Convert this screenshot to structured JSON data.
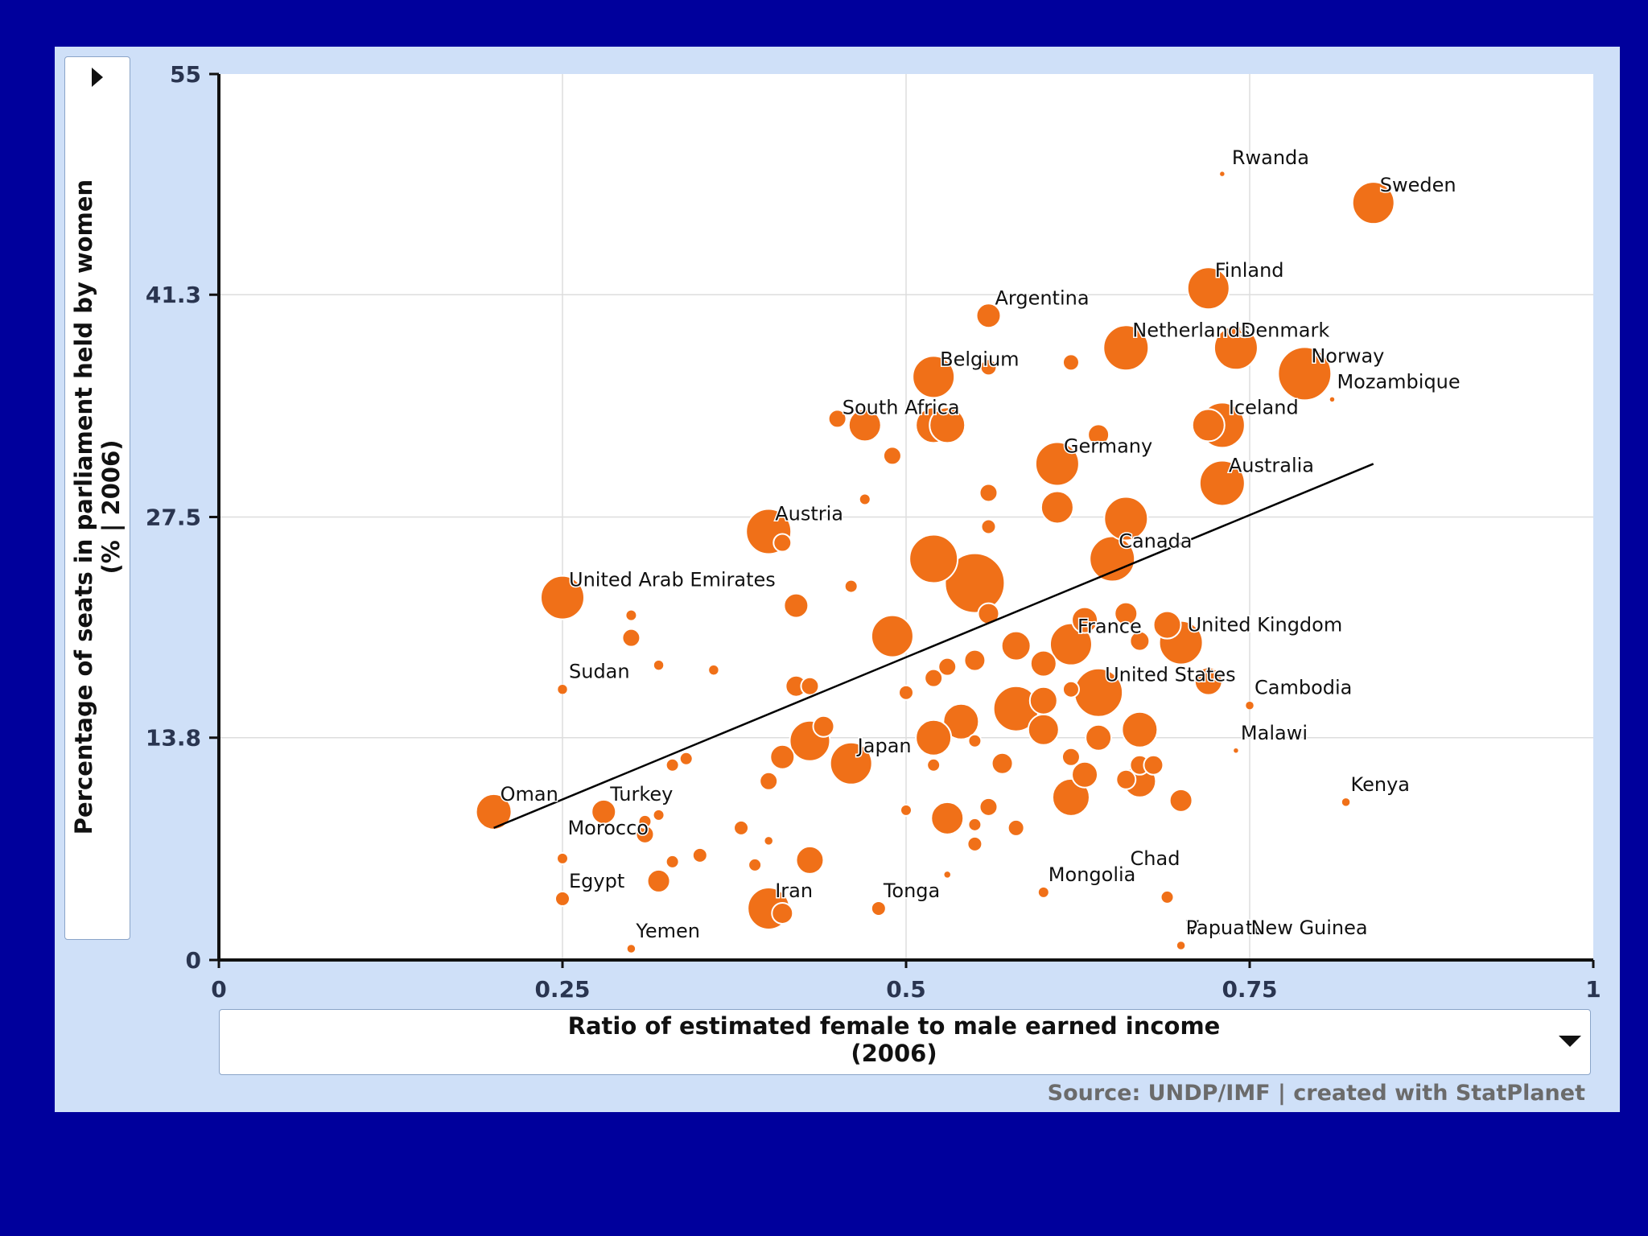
{
  "chart_data": {
    "type": "scatter",
    "xlabel": "Ratio of estimated female to male earned income\n(2006)",
    "ylabel": "Percentage of seats in parliament held by women\n(% | 2006)",
    "xlim": [
      0,
      1
    ],
    "ylim": [
      0,
      55
    ],
    "x_ticks": [
      0,
      0.25,
      0.5,
      0.75,
      1
    ],
    "x_tick_labels": [
      "0",
      "0.25",
      "0.5",
      "0.75",
      "1"
    ],
    "y_ticks": [
      0,
      13.8,
      27.5,
      41.3,
      55
    ],
    "y_tick_labels": [
      "0",
      "13.8",
      "27.5",
      "41.3",
      "55"
    ],
    "grid": true,
    "source": "Source: UNDP/IMF | created with StatPlanet",
    "colors": {
      "bubble": "#f07018",
      "bubble_stroke": "#ffffff",
      "trend": "#000000"
    },
    "trend_line": {
      "x": [
        0.2,
        0.84
      ],
      "y": [
        8.2,
        30.8
      ]
    },
    "points": [
      {
        "name": "Rwanda",
        "x": 0.73,
        "y": 48.8,
        "size": 3
      },
      {
        "name": "Sweden",
        "x": 0.84,
        "y": 47.0,
        "size": 26
      },
      {
        "name": "Finland",
        "x": 0.72,
        "y": 41.7,
        "size": 26
      },
      {
        "name": "Argentina",
        "x": 0.56,
        "y": 40.0,
        "size": 15
      },
      {
        "name": "Netherlands",
        "x": 0.66,
        "y": 38.0,
        "size": 28
      },
      {
        "name": "Denmark",
        "x": 0.74,
        "y": 38.0,
        "size": 27
      },
      {
        "name": "Norway",
        "x": 0.79,
        "y": 36.4,
        "size": 33
      },
      {
        "name": "Mozambique",
        "x": 0.81,
        "y": 34.8,
        "size": 3
      },
      {
        "name": "Belgium",
        "x": 0.52,
        "y": 36.2,
        "size": 26
      },
      {
        "name": "South Africa",
        "x": 0.47,
        "y": 33.2,
        "size": 20
      },
      {
        "name": "Iceland",
        "x": 0.73,
        "y": 33.2,
        "size": 28
      },
      {
        "name": "Germany",
        "x": 0.61,
        "y": 30.8,
        "size": 27
      },
      {
        "name": "Australia",
        "x": 0.73,
        "y": 29.6,
        "size": 28
      },
      {
        "name": "Austria",
        "x": 0.4,
        "y": 26.6,
        "size": 28
      },
      {
        "name": "Canada",
        "x": 0.65,
        "y": 24.9,
        "size": 28
      },
      {
        "name": "United Arab Emirates",
        "x": 0.25,
        "y": 22.5,
        "size": 27
      },
      {
        "name": "France",
        "x": 0.62,
        "y": 19.6,
        "size": 26
      },
      {
        "name": "United Kingdom",
        "x": 0.7,
        "y": 19.7,
        "size": 27
      },
      {
        "name": "Sudan",
        "x": 0.25,
        "y": 16.8,
        "size": 6
      },
      {
        "name": "United States",
        "x": 0.64,
        "y": 16.6,
        "size": 30
      },
      {
        "name": "Cambodia",
        "x": 0.75,
        "y": 15.8,
        "size": 5
      },
      {
        "name": "Malawi",
        "x": 0.74,
        "y": 13.0,
        "size": 3
      },
      {
        "name": "Japan",
        "x": 0.46,
        "y": 12.2,
        "size": 26
      },
      {
        "name": "Kenya",
        "x": 0.82,
        "y": 9.8,
        "size": 5
      },
      {
        "name": "Oman",
        "x": 0.2,
        "y": 9.2,
        "size": 22
      },
      {
        "name": "Turkey",
        "x": 0.28,
        "y": 9.2,
        "size": 15
      },
      {
        "name": "Morocco",
        "x": 0.31,
        "y": 7.8,
        "size": 11
      },
      {
        "name": "Egypt",
        "x": 0.25,
        "y": 3.8,
        "size": 9
      },
      {
        "name": "Iran",
        "x": 0.4,
        "y": 3.2,
        "size": 26
      },
      {
        "name": "Tonga",
        "x": 0.48,
        "y": 3.2,
        "size": 9
      },
      {
        "name": "Mongolia",
        "x": 0.6,
        "y": 4.2,
        "size": 7
      },
      {
        "name": "Chad",
        "x": 0.69,
        "y": 3.9,
        "size": 8
      },
      {
        "name": "Vanuatu",
        "x": 0.7,
        "y": 0.9,
        "size": 5
      },
      {
        "name": "Yemen",
        "x": 0.3,
        "y": 0.7,
        "size": 5
      },
      {
        "name": "Papua New Guinea",
        "x": 0.7,
        "y": 0.9,
        "size": 5
      }
    ],
    "unlabeled_points": [
      [
        0.52,
        33.2,
        22
      ],
      [
        0.53,
        33.2,
        22
      ],
      [
        0.45,
        33.6,
        11
      ],
      [
        0.49,
        31.3,
        11
      ],
      [
        0.56,
        36.8,
        10
      ],
      [
        0.62,
        37.1,
        10
      ],
      [
        0.64,
        32.6,
        13
      ],
      [
        0.72,
        33.2,
        20
      ],
      [
        0.56,
        29.0,
        11
      ],
      [
        0.47,
        28.6,
        7
      ],
      [
        0.61,
        28.1,
        20
      ],
      [
        0.66,
        27.4,
        27
      ],
      [
        0.56,
        26.9,
        9
      ],
      [
        0.52,
        24.9,
        30
      ],
      [
        0.55,
        23.4,
        37
      ],
      [
        0.41,
        25.9,
        11
      ],
      [
        0.46,
        23.2,
        8
      ],
      [
        0.42,
        22.0,
        15
      ],
      [
        0.3,
        21.4,
        7
      ],
      [
        0.3,
        20.0,
        11
      ],
      [
        0.32,
        18.3,
        6
      ],
      [
        0.36,
        18.0,
        6
      ],
      [
        0.49,
        20.1,
        26
      ],
      [
        0.56,
        21.5,
        13
      ],
      [
        0.63,
        21.1,
        16
      ],
      [
        0.66,
        21.5,
        14
      ],
      [
        0.69,
        20.8,
        17
      ],
      [
        0.67,
        19.8,
        12
      ],
      [
        0.58,
        19.5,
        18
      ],
      [
        0.6,
        18.4,
        16
      ],
      [
        0.55,
        18.6,
        13
      ],
      [
        0.53,
        18.2,
        11
      ],
      [
        0.52,
        17.5,
        11
      ],
      [
        0.43,
        17.0,
        11
      ],
      [
        0.42,
        17.0,
        13
      ],
      [
        0.5,
        16.6,
        9
      ],
      [
        0.62,
        16.8,
        10
      ],
      [
        0.72,
        17.3,
        17
      ],
      [
        0.58,
        15.6,
        28
      ],
      [
        0.6,
        16.1,
        17
      ],
      [
        0.54,
        14.8,
        22
      ],
      [
        0.44,
        14.5,
        13
      ],
      [
        0.43,
        13.6,
        25
      ],
      [
        0.52,
        13.8,
        22
      ],
      [
        0.67,
        14.3,
        22
      ],
      [
        0.6,
        14.3,
        19
      ],
      [
        0.64,
        13.8,
        16
      ],
      [
        0.55,
        13.6,
        8
      ],
      [
        0.41,
        12.6,
        15
      ],
      [
        0.34,
        12.5,
        8
      ],
      [
        0.33,
        12.1,
        8
      ],
      [
        0.57,
        12.2,
        13
      ],
      [
        0.62,
        12.6,
        11
      ],
      [
        0.67,
        12.1,
        12
      ],
      [
        0.68,
        12.1,
        12
      ],
      [
        0.52,
        12.1,
        8
      ],
      [
        0.63,
        11.5,
        16
      ],
      [
        0.66,
        11.2,
        12
      ],
      [
        0.67,
        11.1,
        20
      ],
      [
        0.4,
        11.1,
        11
      ],
      [
        0.62,
        10.1,
        23
      ],
      [
        0.7,
        9.9,
        14
      ],
      [
        0.56,
        9.5,
        11
      ],
      [
        0.5,
        9.3,
        7
      ],
      [
        0.53,
        8.8,
        20
      ],
      [
        0.55,
        8.4,
        8
      ],
      [
        0.58,
        8.2,
        10
      ],
      [
        0.38,
        8.2,
        9
      ],
      [
        0.32,
        9.0,
        7
      ],
      [
        0.31,
        8.6,
        8
      ],
      [
        0.4,
        7.4,
        5
      ],
      [
        0.55,
        7.2,
        9
      ],
      [
        0.43,
        6.2,
        17
      ],
      [
        0.35,
        6.5,
        9
      ],
      [
        0.33,
        6.1,
        8
      ],
      [
        0.25,
        6.3,
        7
      ],
      [
        0.39,
        5.9,
        8
      ],
      [
        0.32,
        4.9,
        14
      ],
      [
        0.41,
        2.9,
        13
      ],
      [
        0.53,
        5.3,
        4
      ]
    ]
  }
}
